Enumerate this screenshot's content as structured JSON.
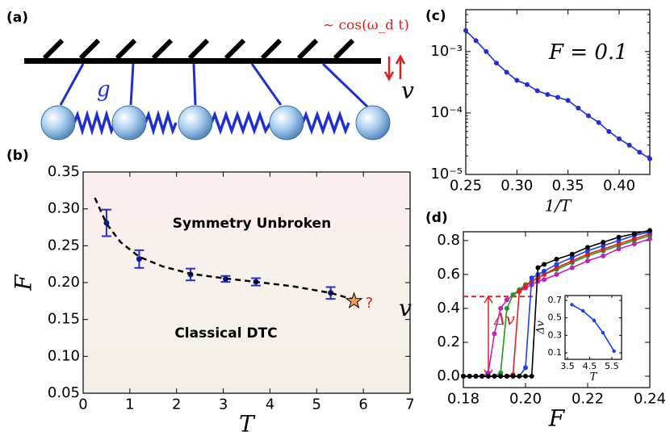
{
  "diagram": {
    "panel": "(a)",
    "drive": "~ cos(ω_d t)",
    "coupling": "g"
  },
  "chart_data": [
    {
      "type": "scatter",
      "panel": "(b)",
      "xlabel": "T",
      "ylabel": "F",
      "xlim": [
        0,
        7
      ],
      "ylim": [
        0.05,
        0.35
      ],
      "xticks": [
        0,
        1,
        2,
        3,
        4,
        5,
        6,
        7
      ],
      "yticks": [
        0.05,
        {
          "value": 0.1,
          "label": "0.10"
        },
        0.15,
        {
          "value": 0.2,
          "label": "0.20"
        },
        0.25,
        {
          "value": 0.3,
          "label": "0.30"
        },
        0.35
      ],
      "regions": [
        "Symmetry Unbroken",
        "Classical DTC"
      ],
      "series": [
        {
          "style": "errorbar",
          "color": "#1f2fd6",
          "x": [
            0.5,
            1.2,
            2.3,
            3.05,
            3.7,
            5.3
          ],
          "values": [
            0.281,
            0.232,
            0.211,
            0.205,
            0.201,
            0.186
          ],
          "errors": [
            0.018,
            0.012,
            0.008,
            0.004,
            0.005,
            0.008
          ]
        },
        {
          "style": "dashed",
          "color": "#000000",
          "x": [
            0.25,
            0.5,
            0.8,
            1.2,
            1.7,
            2.3,
            3,
            3.7,
            4.5,
            5.3,
            5.8
          ],
          "values": [
            0.315,
            0.28,
            0.255,
            0.235,
            0.222,
            0.212,
            0.206,
            0.201,
            0.195,
            0.186,
            0.177
          ]
        },
        {
          "style": "star",
          "color": "#f0a050",
          "x": [
            5.8
          ],
          "values": [
            0.175
          ],
          "label": "?"
        }
      ]
    },
    {
      "type": "line",
      "panel": "(c)",
      "xlabel": "1/T",
      "ylabel": "v",
      "annotation": "F = 0.1",
      "log_y": true,
      "xlim": [
        0.25,
        0.43
      ],
      "ylim": [
        1e-05,
        0.0048
      ],
      "xticks": [
        0.25,
        {
          "value": 0.3,
          "label": "0.30"
        },
        0.35,
        {
          "value": 0.4,
          "label": "0.40"
        }
      ],
      "yticks": [
        {
          "value": 1e-05,
          "label": "10⁻⁵"
        },
        {
          "value": 0.0001,
          "label": "10⁻⁴"
        },
        {
          "value": 0.001,
          "label": "10⁻³"
        }
      ],
      "x": [
        0.25,
        0.26,
        0.27,
        0.28,
        0.29,
        0.3,
        0.31,
        0.32,
        0.33,
        0.34,
        0.35,
        0.36,
        0.37,
        0.38,
        0.39,
        0.4,
        0.41,
        0.42,
        0.43
      ],
      "series": [
        {
          "color": "#1f2fd6",
          "values": [
            0.0022,
            0.0015,
            0.001,
            0.00065,
            0.00046,
            0.00034,
            0.00029,
            0.00023,
            0.0002,
            0.00018,
            0.00016,
            0.00012,
            9e-05,
            7e-05,
            5e-05,
            3.8e-05,
            3e-05,
            2.3e-05,
            1.8e-05
          ]
        }
      ]
    },
    {
      "type": "line",
      "panel": "(d)",
      "xlabel": "F",
      "ylabel": "v",
      "xlim": [
        0.18,
        0.24
      ],
      "ylim": [
        -0.067,
        0.852
      ],
      "xticks": [
        0.18,
        {
          "value": 0.2,
          "label": "0.20"
        },
        0.22,
        0.24
      ],
      "yticks": [
        {
          "value": 0,
          "label": "0.0"
        },
        0.2,
        0.4,
        0.6,
        0.8
      ],
      "delta": {
        "label": "Δv",
        "value": 0.47
      },
      "x": [
        0.18,
        0.182,
        0.184,
        0.186,
        0.188,
        0.19,
        0.192,
        0.194,
        0.196,
        0.198,
        0.2,
        0.202,
        0.204,
        0.206,
        0.21,
        0.215,
        0.22,
        0.225,
        0.23,
        0.235,
        0.24
      ],
      "series": [
        {
          "color": "#c020c0",
          "values": [
            0,
            0,
            0,
            0,
            0.02,
            0.25,
            0.4,
            0.45,
            0.48,
            0.5,
            0.52,
            0.54,
            0.56,
            0.57,
            0.6,
            0.64,
            0.68,
            0.71,
            0.75,
            0.78,
            0.81
          ]
        },
        {
          "color": "#1a9a1a",
          "values": [
            0,
            0,
            0,
            0,
            0,
            0,
            0.02,
            0.4,
            0.48,
            0.51,
            0.54,
            0.56,
            0.58,
            0.6,
            0.63,
            0.67,
            0.71,
            0.74,
            0.77,
            0.8,
            0.83
          ]
        },
        {
          "color": "#e02020",
          "values": [
            0,
            0,
            0,
            0,
            0,
            0,
            0,
            0,
            0.01,
            0.5,
            0.53,
            0.56,
            0.58,
            0.6,
            0.64,
            0.68,
            0.72,
            0.75,
            0.78,
            0.81,
            0.84
          ]
        },
        {
          "color": "#1a3ff0",
          "values": [
            0,
            0,
            0,
            0,
            0,
            0,
            0,
            0,
            0,
            0,
            0.05,
            0.58,
            0.6,
            0.62,
            0.66,
            0.7,
            0.74,
            0.77,
            0.8,
            0.83,
            0.85
          ]
        },
        {
          "color": "#000000",
          "values": [
            0,
            0,
            0,
            0,
            0,
            0,
            0,
            0,
            0,
            0,
            0,
            0,
            0.64,
            0.66,
            0.69,
            0.72,
            0.76,
            0.79,
            0.82,
            0.84,
            0.86
          ]
        }
      ]
    },
    {
      "type": "line",
      "xlabel": "T",
      "ylabel": "Δv",
      "xlim": [
        3.39,
        5.94
      ],
      "ylim": [
        0.026,
        0.755
      ],
      "xticks": [
        3.5,
        4.5,
        5.5
      ],
      "yticks": [
        0.1,
        0.3,
        0.5,
        0.7
      ],
      "x": [
        3.7,
        4.2,
        4.7,
        5.1,
        5.6
      ],
      "series": [
        {
          "color": "#1a3ff0",
          "values": [
            0.65,
            0.58,
            0.47,
            0.33,
            0.12
          ]
        }
      ]
    }
  ]
}
